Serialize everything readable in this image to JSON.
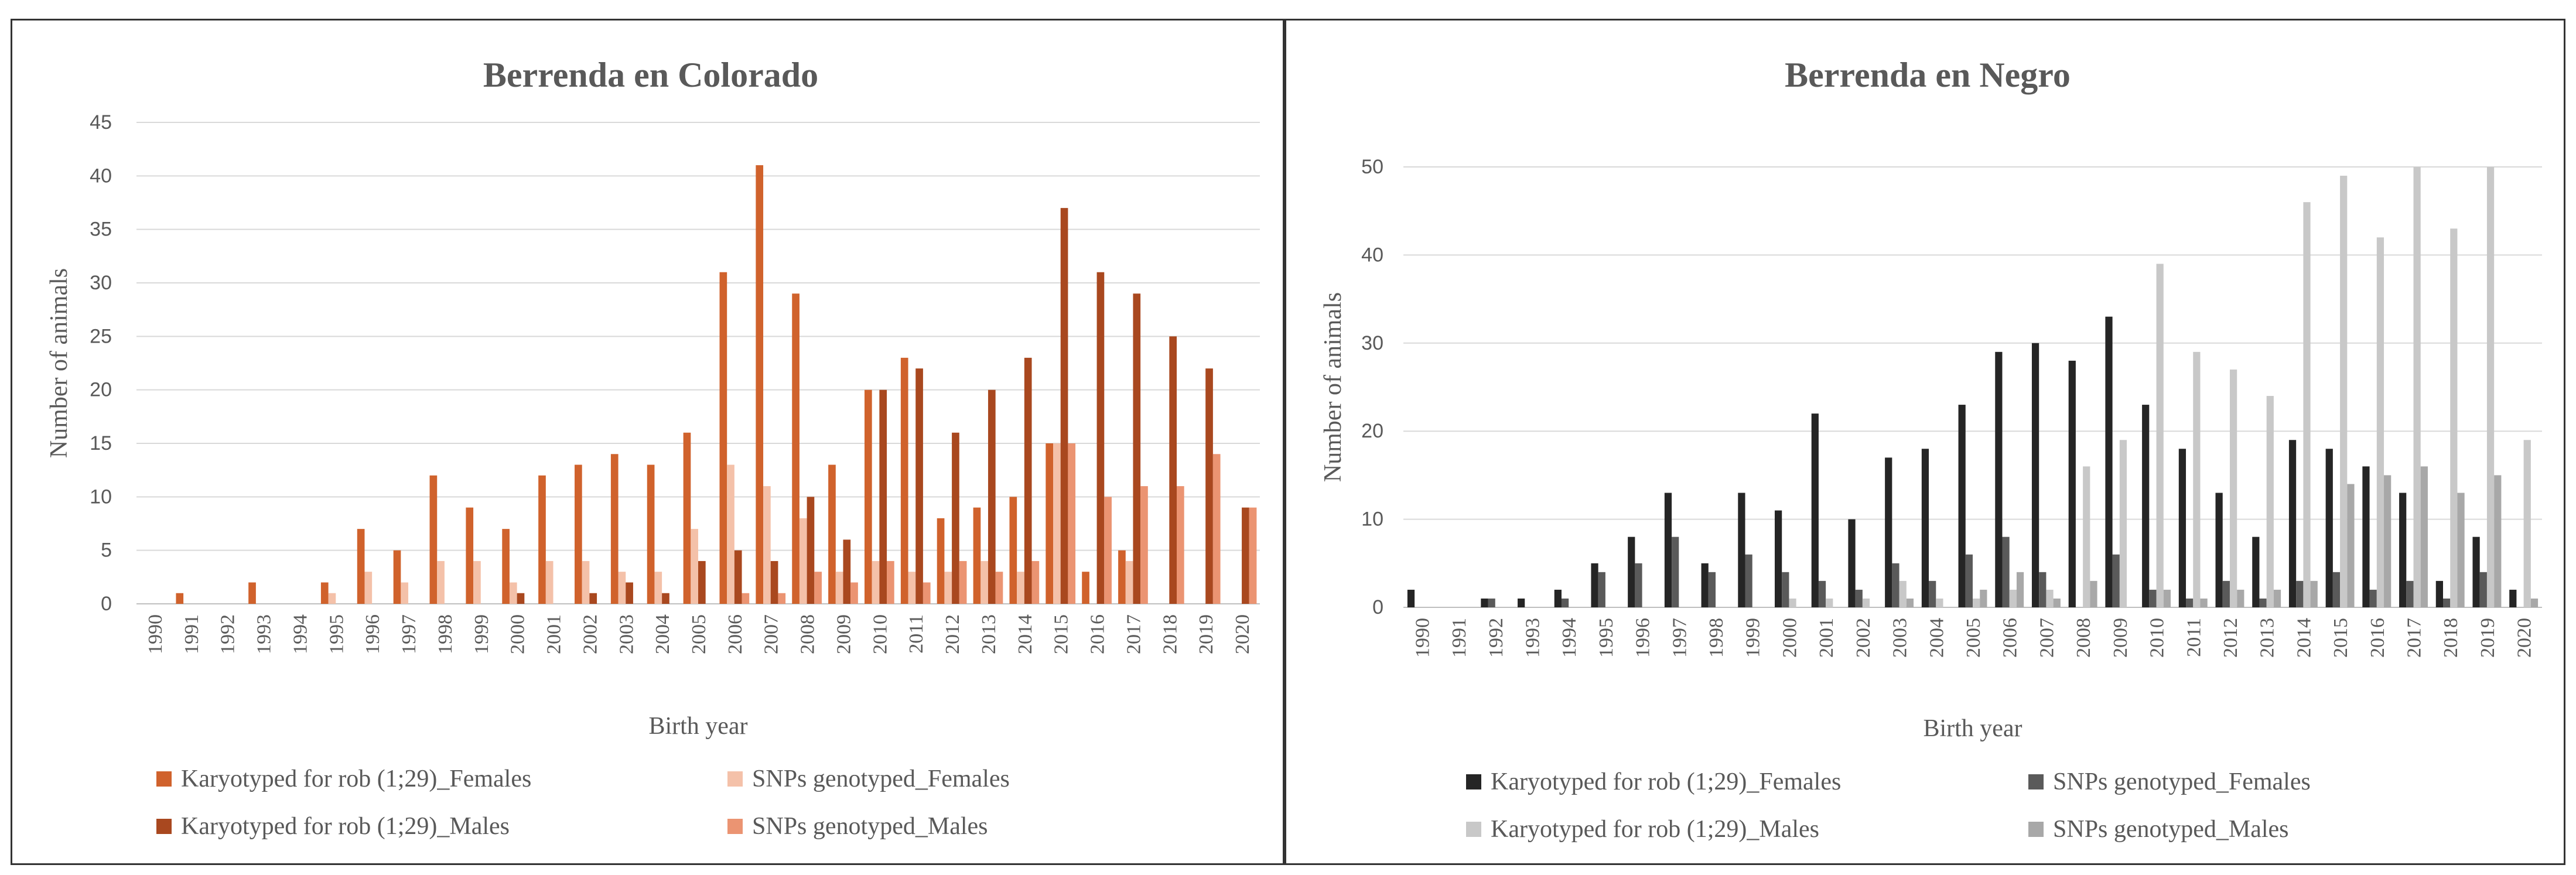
{
  "chart_data": [
    {
      "type": "bar",
      "title": "Berrenda en Colorado",
      "xlabel": "Birth year",
      "ylabel": "Number of animals",
      "ylim": [
        0,
        45
      ],
      "yticks": [
        0,
        5,
        10,
        15,
        20,
        25,
        30,
        35,
        40,
        45
      ],
      "grid": true,
      "legend_position": "bottom",
      "categories": [
        "1990",
        "1991",
        "1992",
        "1993",
        "1994",
        "1995",
        "1996",
        "1997",
        "1998",
        "1999",
        "2000",
        "2001",
        "2002",
        "2003",
        "2004",
        "2005",
        "2006",
        "2007",
        "2008",
        "2009",
        "2010",
        "2011",
        "2012",
        "2013",
        "2014",
        "2015",
        "2016",
        "2017",
        "2018",
        "2019",
        "2020"
      ],
      "series": [
        {
          "name": "Karyotyped for rob (1;29)_Females",
          "color": "#D0622C",
          "values": [
            0,
            1,
            0,
            2,
            0,
            2,
            7,
            5,
            12,
            9,
            7,
            12,
            13,
            14,
            13,
            16,
            31,
            41,
            29,
            13,
            20,
            23,
            8,
            9,
            10,
            15,
            3,
            5,
            0,
            0,
            0
          ]
        },
        {
          "name": "SNPs genotyped_Females",
          "color": "#F4C1A9",
          "values": [
            0,
            0,
            0,
            0,
            0,
            1,
            3,
            2,
            4,
            4,
            2,
            4,
            4,
            3,
            3,
            7,
            13,
            11,
            8,
            3,
            4,
            3,
            3,
            4,
            3,
            15,
            0,
            4,
            0,
            0,
            0
          ]
        },
        {
          "name": "Karyotyped for rob (1;29)_Males",
          "color": "#A9481F",
          "values": [
            0,
            0,
            0,
            0,
            0,
            0,
            0,
            0,
            0,
            0,
            1,
            0,
            1,
            2,
            1,
            4,
            5,
            4,
            10,
            6,
            20,
            22,
            16,
            20,
            23,
            37,
            31,
            29,
            25,
            22,
            9
          ]
        },
        {
          "name": "SNPs genotyped_Males",
          "color": "#EB9472",
          "values": [
            0,
            0,
            0,
            0,
            0,
            0,
            0,
            0,
            0,
            0,
            0,
            0,
            0,
            0,
            0,
            0,
            1,
            1,
            3,
            2,
            4,
            2,
            4,
            3,
            4,
            15,
            10,
            11,
            11,
            14,
            9
          ]
        }
      ]
    },
    {
      "type": "bar",
      "title": "Berrenda en Negro",
      "xlabel": "Birth year",
      "ylabel": "Number of animals",
      "ylim": [
        0,
        50
      ],
      "yticks": [
        0,
        10,
        20,
        30,
        40,
        50
      ],
      "grid": true,
      "legend_position": "bottom",
      "categories": [
        "1990",
        "1991",
        "1992",
        "1993",
        "1994",
        "1995",
        "1996",
        "1997",
        "1998",
        "1999",
        "2000",
        "2001",
        "2002",
        "2003",
        "2004",
        "2005",
        "2006",
        "2007",
        "2008",
        "2009",
        "2010",
        "2011",
        "2012",
        "2013",
        "2014",
        "2015",
        "2016",
        "2017",
        "2018",
        "2019",
        "2020"
      ],
      "series": [
        {
          "name": "Karyotyped for rob (1;29)_Females",
          "color": "#252525",
          "values": [
            2,
            0,
            1,
            1,
            2,
            5,
            8,
            13,
            5,
            13,
            11,
            22,
            10,
            17,
            18,
            23,
            29,
            30,
            28,
            33,
            23,
            18,
            13,
            8,
            19,
            18,
            16,
            13,
            3,
            8,
            2
          ]
        },
        {
          "name": "SNPs genotyped_Females",
          "color": "#5A5A5A",
          "values": [
            0,
            0,
            1,
            0,
            1,
            4,
            5,
            8,
            4,
            6,
            4,
            3,
            2,
            5,
            3,
            6,
            8,
            4,
            0,
            6,
            2,
            1,
            3,
            1,
            3,
            4,
            2,
            3,
            1,
            4,
            0
          ]
        },
        {
          "name": "Karyotyped for rob (1;29)_Males",
          "color": "#C8C8C8",
          "values": [
            0,
            0,
            0,
            0,
            0,
            0,
            0,
            0,
            0,
            0,
            1,
            1,
            1,
            3,
            1,
            1,
            2,
            2,
            16,
            19,
            39,
            29,
            27,
            24,
            46,
            49,
            42,
            50,
            43,
            50,
            19
          ]
        },
        {
          "name": "SNPs genotyped_Males",
          "color": "#A8A8A8",
          "values": [
            0,
            0,
            0,
            0,
            0,
            0,
            0,
            0,
            0,
            0,
            0,
            0,
            0,
            1,
            0,
            2,
            4,
            1,
            3,
            0,
            2,
            1,
            2,
            2,
            3,
            14,
            15,
            16,
            13,
            15,
            1
          ]
        }
      ]
    }
  ]
}
